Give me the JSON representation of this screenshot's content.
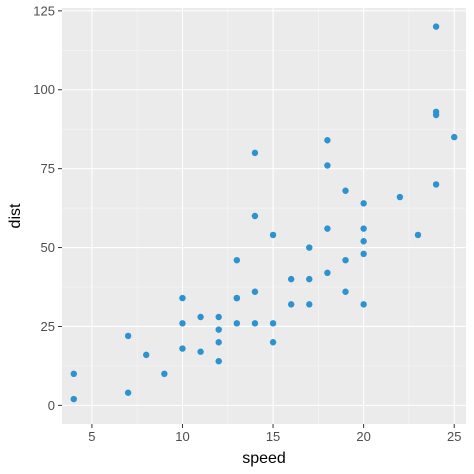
{
  "chart_data": {
    "type": "scatter",
    "title": "",
    "xlabel": "speed",
    "ylabel": "dist",
    "xlim": [
      3.35,
      25.65
    ],
    "ylim": [
      -5.9,
      125.9
    ],
    "x_ticks": [
      5,
      10,
      15,
      20,
      25
    ],
    "y_ticks": [
      0,
      25,
      50,
      75,
      100,
      125
    ],
    "x_tick_labels": [
      "5",
      "10",
      "15",
      "20",
      "25"
    ],
    "y_tick_labels": [
      "0",
      "25",
      "50",
      "75",
      "100",
      "125"
    ],
    "grid": true,
    "legend": "none",
    "colors": {
      "point": "#2b93cf",
      "panel": "#ebebeb",
      "grid_major": "#ffffff"
    },
    "series": [
      {
        "points": [
          [
            4,
            2
          ],
          [
            4,
            10
          ],
          [
            7,
            4
          ],
          [
            7,
            22
          ],
          [
            8,
            16
          ],
          [
            9,
            10
          ],
          [
            10,
            18
          ],
          [
            10,
            26
          ],
          [
            10,
            34
          ],
          [
            11,
            17
          ],
          [
            11,
            28
          ],
          [
            12,
            14
          ],
          [
            12,
            20
          ],
          [
            12,
            24
          ],
          [
            12,
            28
          ],
          [
            13,
            26
          ],
          [
            13,
            34
          ],
          [
            13,
            34
          ],
          [
            13,
            46
          ],
          [
            14,
            26
          ],
          [
            14,
            36
          ],
          [
            14,
            60
          ],
          [
            14,
            80
          ],
          [
            15,
            20
          ],
          [
            15,
            26
          ],
          [
            15,
            54
          ],
          [
            16,
            32
          ],
          [
            16,
            40
          ],
          [
            17,
            32
          ],
          [
            17,
            40
          ],
          [
            17,
            50
          ],
          [
            18,
            42
          ],
          [
            18,
            56
          ],
          [
            18,
            76
          ],
          [
            18,
            84
          ],
          [
            19,
            36
          ],
          [
            19,
            46
          ],
          [
            19,
            68
          ],
          [
            20,
            32
          ],
          [
            20,
            48
          ],
          [
            20,
            52
          ],
          [
            20,
            56
          ],
          [
            20,
            64
          ],
          [
            22,
            66
          ],
          [
            23,
            54
          ],
          [
            24,
            70
          ],
          [
            24,
            92
          ],
          [
            24,
            93
          ],
          [
            24,
            120
          ],
          [
            25,
            85
          ]
        ]
      }
    ]
  }
}
